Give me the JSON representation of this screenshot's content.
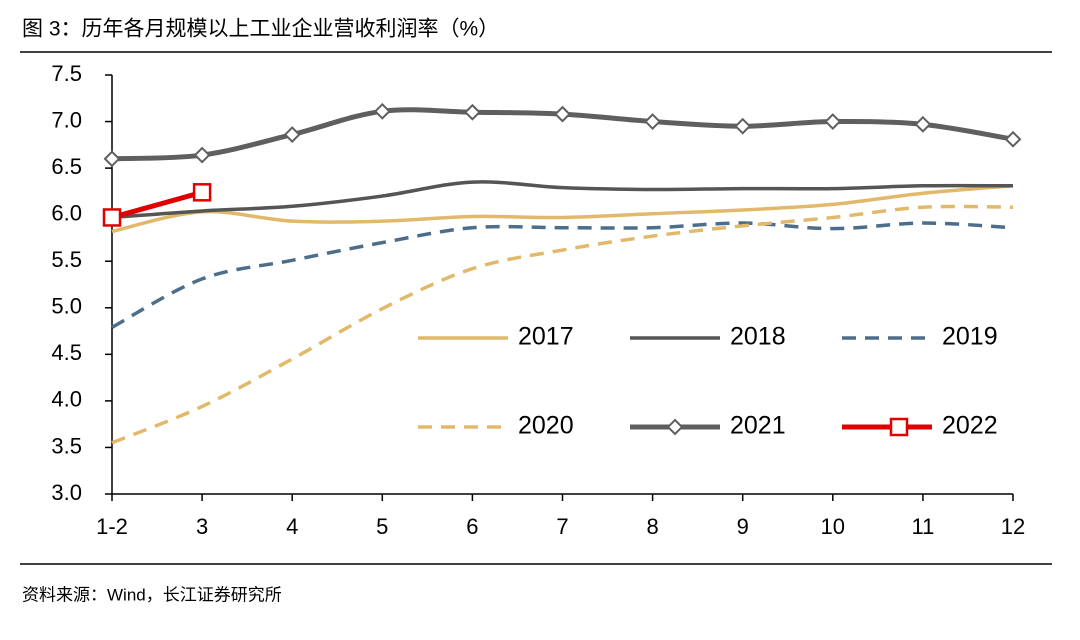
{
  "chart_data": {
    "type": "line",
    "title": "图 3：历年各月规模以上工业企业营收利润率（%）",
    "source": "资料来源：Wind，长江证券研究所",
    "categories": [
      "1-2",
      "3",
      "4",
      "5",
      "6",
      "7",
      "8",
      "9",
      "10",
      "11",
      "12"
    ],
    "ylim": [
      3.0,
      7.5
    ],
    "yticks": [
      {
        "value": 3.0,
        "label": "3.0"
      },
      3.5,
      {
        "value": 4.0,
        "label": "4.0"
      },
      4.5,
      {
        "value": 5.0,
        "label": "5.0"
      },
      5.5,
      {
        "value": 6.0,
        "label": "6.0"
      },
      6.5,
      {
        "value": 7.0,
        "label": "7.0"
      },
      7.5
    ],
    "series": [
      {
        "name": "2017",
        "color": "#e2b96a",
        "style": "solid",
        "values": [
          5.82,
          6.03,
          5.93,
          5.93,
          5.98,
          5.97,
          6.01,
          6.05,
          6.11,
          6.23,
          6.31
        ]
      },
      {
        "name": "2018",
        "color": "#555555",
        "style": "solid",
        "values": [
          5.97,
          6.04,
          6.09,
          6.2,
          6.35,
          6.29,
          6.27,
          6.28,
          6.28,
          6.31,
          6.31
        ]
      },
      {
        "name": "2019",
        "color": "#4d6e8a",
        "style": "dashed",
        "values": [
          4.79,
          5.31,
          5.51,
          5.7,
          5.86,
          5.86,
          5.86,
          5.91,
          5.85,
          5.91,
          5.86
        ]
      },
      {
        "name": "2020",
        "color": "#e2b96a",
        "style": "dashed",
        "values": [
          3.55,
          3.94,
          4.45,
          4.99,
          5.42,
          5.62,
          5.77,
          5.88,
          5.97,
          6.08,
          6.08
        ]
      },
      {
        "name": "2021",
        "color": "#5f5f5f",
        "style": "thick",
        "marker": "diamond",
        "values": [
          6.6,
          6.64,
          6.86,
          7.11,
          7.1,
          7.08,
          7.0,
          6.95,
          7.0,
          6.97,
          6.81
        ]
      },
      {
        "name": "2022",
        "color": "#e00000",
        "style": "thick",
        "marker": "square",
        "values": [
          5.97,
          6.24,
          null,
          null,
          null,
          null,
          null,
          null,
          null,
          null,
          null
        ]
      }
    ]
  }
}
